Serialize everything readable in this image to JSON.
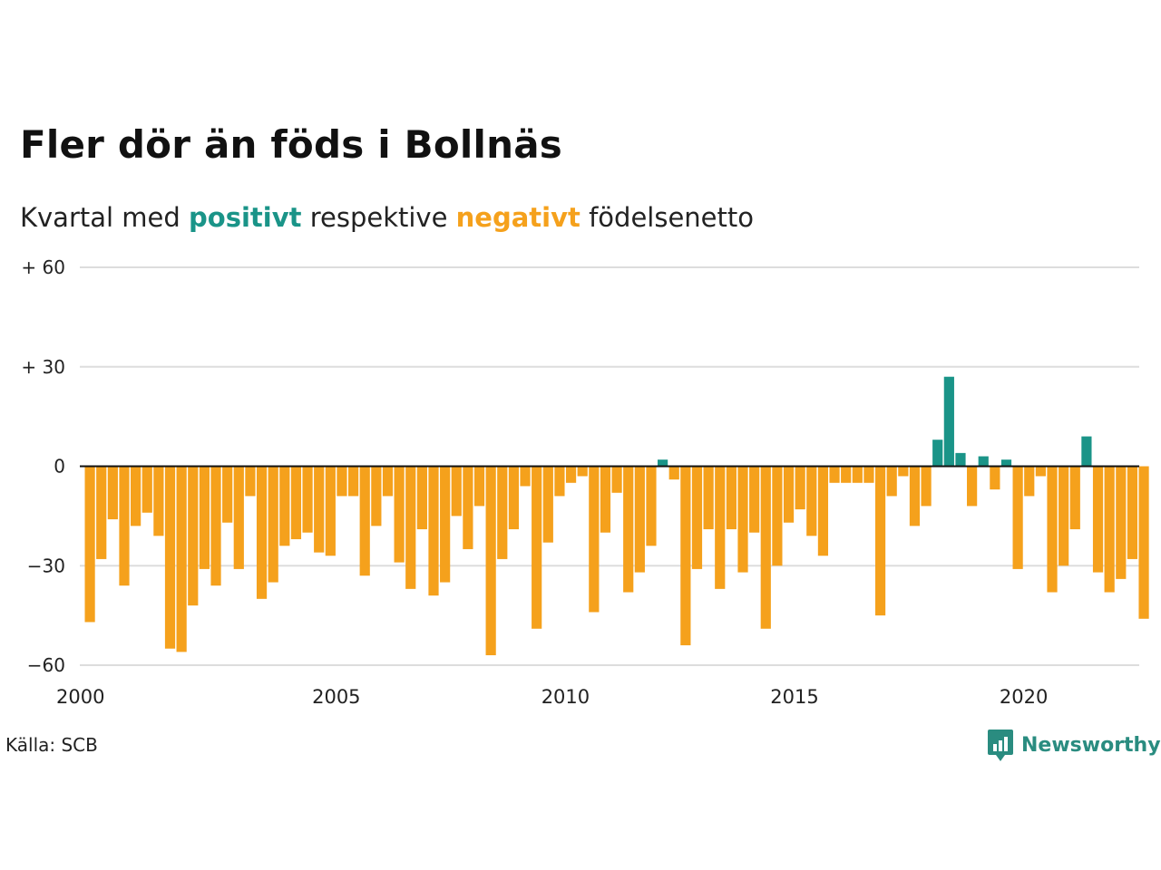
{
  "title": "Fler dör än föds i Bollnäs",
  "subtitle": {
    "prefix": "Kvartal med ",
    "positive_word": "positivt",
    "middle": " respektive ",
    "negative_word": "negativt",
    "suffix": " födelsenetto"
  },
  "source": "Källa: SCB",
  "logo_text": "Newsworthy",
  "colors": {
    "positive": "#1a9488",
    "negative": "#f5a11c",
    "grid": "#dddddd",
    "zero_line": "#111111",
    "logo": "#2a8c80"
  },
  "chart_data": {
    "type": "bar",
    "x_start": "2000 Q1",
    "frequency": "quarterly",
    "ylim": [
      -60,
      60
    ],
    "yticks": [
      60,
      30,
      0,
      -30,
      -60
    ],
    "ytick_labels": [
      "+ 60",
      "+ 30",
      "0",
      "−30",
      "−60"
    ],
    "xtick_labels": [
      "2000",
      "2005",
      "2010",
      "2015",
      "2020"
    ],
    "grid": true,
    "values": [
      -47,
      -28,
      -16,
      -36,
      -18,
      -14,
      -21,
      -55,
      -56,
      -42,
      -31,
      -36,
      -17,
      -31,
      -9,
      -40,
      -35,
      -24,
      -22,
      -20,
      -26,
      -27,
      -9,
      -9,
      -33,
      -18,
      -9,
      -29,
      -37,
      -19,
      -39,
      -35,
      -15,
      -25,
      -12,
      -57,
      -28,
      -19,
      -6,
      -49,
      -23,
      -9,
      -5,
      -3,
      -44,
      -20,
      -8,
      -38,
      -32,
      -24,
      2,
      -4,
      -54,
      -31,
      -19,
      -37,
      -19,
      -32,
      -20,
      -49,
      -30,
      -17,
      -13,
      -21,
      -27,
      -5,
      -5,
      -5,
      -5,
      -45,
      -9,
      -3,
      -18,
      -12,
      8,
      27,
      4,
      -12,
      3,
      -7,
      2,
      -31,
      -9,
      -3,
      -38,
      -30,
      -19,
      9,
      -32,
      -38,
      -34,
      -28,
      -46
    ]
  }
}
